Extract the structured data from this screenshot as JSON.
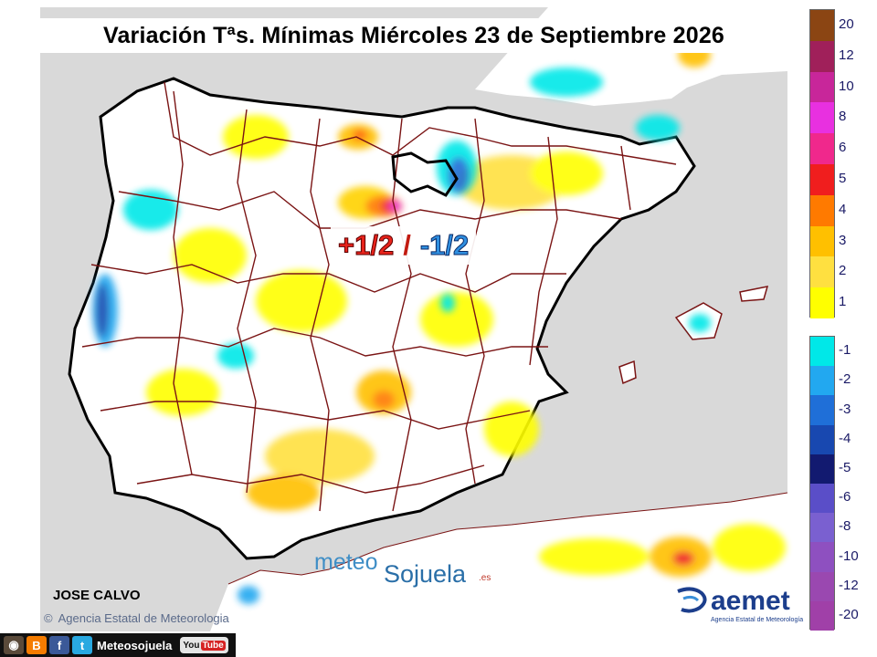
{
  "title": "Variación Tªs. Mínimas Miércoles 23 de Septiembre 2026",
  "range_label": {
    "plus": "+1/2",
    "separator": "/",
    "minus": "-1/2"
  },
  "author": "JOSE CALVO",
  "copyright": "Agencia Estatal de Meteorologia",
  "brand": {
    "part1": "meteo",
    "part2": "Sojuela",
    "tld": ".es"
  },
  "aemet": {
    "word": "aemet",
    "sub": "Agencia Estatal de Meteorología"
  },
  "social": {
    "handle": "Meteosojuela",
    "youtube": "You",
    "youtube_tube": "Tube",
    "icons": [
      "instagram-icon",
      "blogger-icon",
      "facebook-icon",
      "twitter-icon"
    ]
  },
  "legend": {
    "positive": [
      {
        "label": "20",
        "color": "#8b4513"
      },
      {
        "label": "12",
        "color": "#a0205a"
      },
      {
        "label": "10",
        "color": "#c8269a"
      },
      {
        "label": "8",
        "color": "#e830e0"
      },
      {
        "label": "6",
        "color": "#f0288c"
      },
      {
        "label": "5",
        "color": "#f01e1e"
      },
      {
        "label": "4",
        "color": "#ff7a00"
      },
      {
        "label": "3",
        "color": "#ffc000"
      },
      {
        "label": "2",
        "color": "#ffe040"
      },
      {
        "label": "1",
        "color": "#ffff00"
      }
    ],
    "negative": [
      {
        "label": "-1",
        "color": "#00e8e8"
      },
      {
        "label": "-2",
        "color": "#22a8f0"
      },
      {
        "label": "-3",
        "color": "#1f6fd8"
      },
      {
        "label": "-4",
        "color": "#1848b0"
      },
      {
        "label": "-5",
        "color": "#121a70"
      },
      {
        "label": "-6",
        "color": "#5a4ec8"
      },
      {
        "label": "-8",
        "color": "#7a60d0"
      },
      {
        "label": "-10",
        "color": "#8e50c0"
      },
      {
        "label": "-12",
        "color": "#9a48b0"
      },
      {
        "label": "-20",
        "color": "#a040a8"
      }
    ]
  },
  "colors": {
    "sea": "#d9d9d9",
    "land": "#ffffff",
    "borders": "#7a1414",
    "coast": "#000000"
  }
}
